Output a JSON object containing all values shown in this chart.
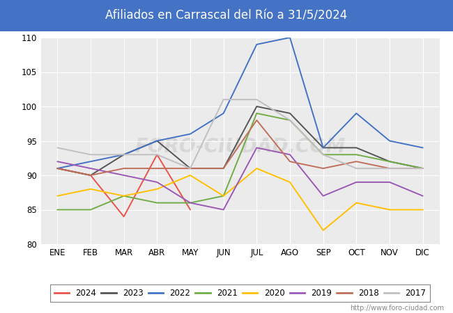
{
  "title": "Afiliados en Carrascal del Río a 31/5/2024",
  "title_color": "#ffffff",
  "title_bg_color": "#4472c4",
  "ylim": [
    80,
    110
  ],
  "yticks": [
    80,
    85,
    90,
    95,
    100,
    105,
    110
  ],
  "months": [
    "ENE",
    "FEB",
    "MAR",
    "ABR",
    "MAY",
    "JUN",
    "JUL",
    "AGO",
    "SEP",
    "OCT",
    "NOV",
    "DIC"
  ],
  "watermark_url": "http://www.foro-ciudad.com",
  "watermark_text": "FORO-CIUDAD.COM",
  "series": {
    "2024": {
      "color": "#e8534a",
      "data": [
        91,
        90,
        84,
        93,
        85,
        null,
        null,
        null,
        null,
        null,
        null,
        null
      ]
    },
    "2023": {
      "color": "#555555",
      "data": [
        91,
        90,
        93,
        95,
        91,
        91,
        100,
        99,
        94,
        94,
        92,
        91
      ]
    },
    "2022": {
      "color": "#4472c4",
      "data": [
        91,
        92,
        93,
        95,
        96,
        99,
        109,
        110,
        94,
        99,
        95,
        94
      ]
    },
    "2021": {
      "color": "#70ad47",
      "data": [
        85,
        85,
        87,
        86,
        86,
        87,
        99,
        98,
        93,
        93,
        92,
        91
      ]
    },
    "2020": {
      "color": "#ffc000",
      "data": [
        87,
        88,
        87,
        88,
        90,
        87,
        91,
        89,
        82,
        86,
        85,
        85
      ]
    },
    "2019": {
      "color": "#9b59b6",
      "data": [
        92,
        91,
        90,
        89,
        86,
        85,
        94,
        93,
        87,
        89,
        89,
        87
      ]
    },
    "2018": {
      "color": "#c0705a",
      "data": [
        91,
        90,
        91,
        91,
        91,
        91,
        98,
        92,
        91,
        92,
        91,
        91
      ]
    },
    "2017": {
      "color": "#c0c0c0",
      "data": [
        94,
        93,
        93,
        93,
        91,
        101,
        101,
        98,
        93,
        91,
        91,
        91
      ]
    }
  },
  "plot_bg_color": "#ebebeb",
  "fig_bg_color": "#ffffff",
  "grid_color": "#ffffff",
  "legend_border_color": "#666666"
}
